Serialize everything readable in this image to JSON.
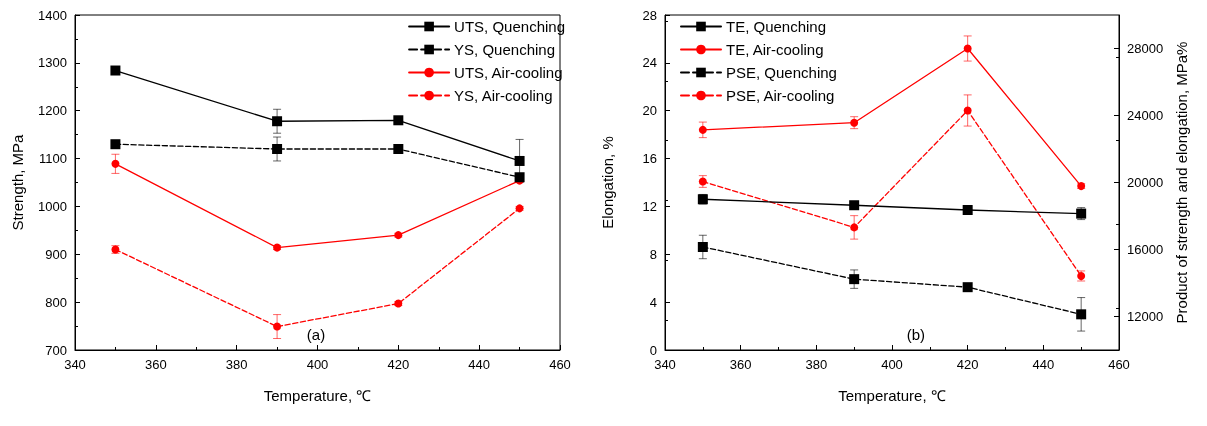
{
  "chart_data": [
    {
      "type": "line",
      "xlabel": "Temperature, ℃",
      "ylabel": "Strength, MPa",
      "annotations": [
        "(a)"
      ],
      "xlim": [
        340,
        460
      ],
      "xticks": [
        340,
        360,
        380,
        400,
        420,
        440,
        460
      ],
      "ylim": [
        700,
        1400
      ],
      "yticks": [
        700,
        800,
        900,
        1000,
        1100,
        1200,
        1300,
        1400
      ],
      "legend": "top right",
      "grid": false,
      "series": [
        {
          "name": "UTS, Quenching",
          "color": "#000000",
          "marker": "square",
          "line_style": "solid",
          "x": [
            350,
            390,
            420,
            450
          ],
          "values": [
            1284,
            1178,
            1180,
            1095
          ],
          "errors": [
            8,
            25,
            8,
            45
          ]
        },
        {
          "name": "YS, Quenching",
          "color": "#000000",
          "marker": "square",
          "line_style": "dashed",
          "x": [
            350,
            390,
            420,
            450
          ],
          "values": [
            1130,
            1120,
            1120,
            1061
          ],
          "errors": [
            4,
            25,
            8,
            null
          ]
        },
        {
          "name": "UTS, Air-cooling",
          "color": "#ff0000",
          "marker": "circle",
          "line_style": "solid",
          "x": [
            350,
            390,
            420,
            450
          ],
          "values": [
            1089,
            914,
            940,
            1054
          ],
          "errors": [
            20,
            4,
            4,
            null
          ]
        },
        {
          "name": "YS, Air-cooling",
          "color": "#ff0000",
          "marker": "circle",
          "line_style": "dashed",
          "x": [
            350,
            390,
            420,
            450
          ],
          "values": [
            910,
            749,
            797,
            996
          ],
          "errors": [
            8,
            25,
            4,
            4
          ]
        }
      ]
    },
    {
      "type": "line",
      "xlabel": "Temperature, ℃",
      "ylabel": "Elongation, %",
      "y2label": "Product of strength and elongation, MPa%",
      "annotations": [
        "(b)"
      ],
      "xlim": [
        340,
        460
      ],
      "xticks": [
        340,
        360,
        380,
        400,
        420,
        440,
        460
      ],
      "ylim": [
        0,
        28
      ],
      "yticks": [
        0,
        4,
        8,
        12,
        16,
        20,
        24,
        28
      ],
      "y2lim": [
        10000,
        30000
      ],
      "y2ticks": [
        12000,
        16000,
        20000,
        24000,
        28000
      ],
      "legend": "top left",
      "grid": false,
      "series": [
        {
          "name": "TE, Quenching",
          "color": "#000000",
          "marker": "square",
          "line_style": "solid",
          "x": [
            350,
            390,
            420,
            450
          ],
          "values": [
            12.6,
            12.1,
            11.7,
            11.4
          ],
          "errors": [
            0.4,
            0.2,
            0.15,
            0.5
          ]
        },
        {
          "name": "TE, Air-cooling",
          "color": "#ff0000",
          "marker": "circle",
          "line_style": "solid",
          "x": [
            350,
            390,
            420,
            450
          ],
          "values": [
            18.4,
            19,
            25.2,
            13.7
          ],
          "errors": [
            0.65,
            0.5,
            1.05,
            0.2
          ]
        },
        {
          "name": "PSE, Quenching",
          "color": "#000000",
          "marker": "square",
          "line_style": "dashed",
          "axis": "y2",
          "x": [
            350,
            390,
            420,
            450
          ],
          "values": [
            16150,
            14230,
            13750,
            12130
          ],
          "errors": [
            700,
            550,
            100,
            1000
          ]
        },
        {
          "name": "PSE, Air-cooling",
          "color": "#ff0000",
          "marker": "circle",
          "line_style": "dashed",
          "axis": "y2",
          "x": [
            350,
            390,
            420,
            450
          ],
          "values": [
            20060,
            17320,
            24300,
            14420
          ],
          "errors": [
            350,
            700,
            930,
            300
          ]
        }
      ]
    }
  ]
}
